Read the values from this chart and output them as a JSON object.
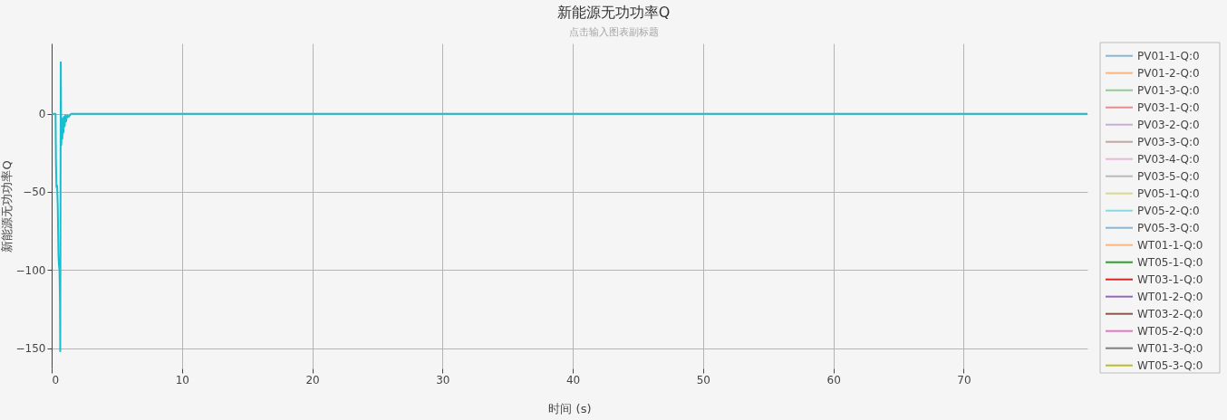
{
  "chart_data": {
    "type": "line",
    "title": "新能源无功功率Q",
    "subtitle": "点击输入图表副标题",
    "xlabel": "时间 (s)",
    "ylabel": "新能源无功功率Q",
    "x": [
      0,
      0.3,
      0.33,
      0.37,
      0.42,
      0.47,
      0.52,
      0.56,
      0.6,
      0.64,
      0.66,
      0.68,
      0.7,
      0.72,
      0.74,
      0.78,
      0.82,
      0.86,
      0.9,
      0.95,
      1,
      1.05,
      1.1,
      1.2,
      1.3,
      1.5,
      2,
      4,
      7,
      10,
      13,
      16,
      19,
      22,
      25,
      28,
      31,
      34,
      37,
      40,
      43,
      46,
      49,
      52,
      55,
      58,
      61,
      64,
      67,
      70,
      73,
      76,
      79.5
    ],
    "xlim": [
      0,
      79.5
    ],
    "xticks": [
      0,
      10,
      20,
      30,
      40,
      50,
      60,
      70
    ],
    "ylim": [
      -163,
      45
    ],
    "yticks": [
      {
        "value": -150,
        "label": "−150"
      },
      {
        "value": -100,
        "label": "−100"
      },
      {
        "value": -50,
        "label": "−50"
      },
      0
    ],
    "grid": true,
    "legend": "right",
    "series": [
      {
        "name": "PV01-1-Q:0",
        "color": "#8ab6d4",
        "values": [
          null,
          null,
          null,
          null,
          null,
          null,
          null,
          null,
          null,
          null,
          null,
          null,
          null,
          null,
          null,
          null,
          null,
          null,
          null,
          null,
          null,
          null,
          null,
          null,
          null,
          null,
          null,
          null,
          null,
          null,
          null,
          null,
          null,
          null,
          null,
          null,
          null,
          null,
          null,
          null,
          null,
          null,
          null,
          null,
          null,
          null,
          null,
          null,
          null,
          null,
          null,
          null,
          null
        ]
      },
      {
        "name": "PV01-2-Q:0",
        "color": "#fab681",
        "values": [
          null,
          null,
          null,
          null,
          null,
          null,
          null,
          null,
          null,
          null,
          null,
          null,
          null,
          null,
          null,
          null,
          null,
          null,
          null,
          null,
          null,
          null,
          null,
          null,
          null,
          null,
          null,
          null,
          null,
          null,
          null,
          null,
          null,
          null,
          null,
          null,
          null,
          null,
          null,
          null,
          null,
          null,
          null,
          null,
          null,
          null,
          null,
          null,
          null,
          null,
          null,
          null,
          null
        ]
      },
      {
        "name": "PV01-3-Q:0",
        "color": "#91cb91",
        "values": [
          null,
          null,
          null,
          null,
          null,
          null,
          null,
          null,
          null,
          null,
          null,
          null,
          null,
          null,
          null,
          null,
          null,
          null,
          null,
          null,
          null,
          null,
          null,
          null,
          null,
          null,
          null,
          null,
          null,
          null,
          null,
          null,
          null,
          null,
          null,
          null,
          null,
          null,
          null,
          null,
          null,
          null,
          null,
          null,
          null,
          null,
          null,
          null,
          null,
          null,
          null,
          null,
          null
        ]
      },
      {
        "name": "PV03-1-Q:0",
        "color": "#e68e8e",
        "values": [
          null,
          null,
          null,
          null,
          null,
          null,
          null,
          null,
          null,
          null,
          null,
          null,
          null,
          null,
          null,
          null,
          null,
          null,
          null,
          null,
          null,
          null,
          null,
          null,
          null,
          null,
          null,
          null,
          null,
          null,
          null,
          null,
          null,
          null,
          null,
          null,
          null,
          null,
          null,
          null,
          null,
          null,
          null,
          null,
          null,
          null,
          null,
          null,
          null,
          null,
          null,
          null,
          null
        ]
      },
      {
        "name": "PV03-2-Q:0",
        "color": "#c5aed9",
        "values": [
          null,
          null,
          null,
          null,
          null,
          null,
          null,
          null,
          null,
          null,
          null,
          null,
          null,
          null,
          null,
          null,
          null,
          null,
          null,
          null,
          null,
          null,
          null,
          null,
          null,
          null,
          null,
          null,
          null,
          null,
          null,
          null,
          null,
          null,
          null,
          null,
          null,
          null,
          null,
          null,
          null,
          null,
          null,
          null,
          null,
          null,
          null,
          null,
          null,
          null,
          null,
          null,
          null
        ]
      },
      {
        "name": "PV03-3-Q:0",
        "color": "#c1a5a0",
        "values": [
          null,
          null,
          null,
          null,
          null,
          null,
          null,
          null,
          null,
          null,
          null,
          null,
          null,
          null,
          null,
          null,
          null,
          null,
          null,
          null,
          null,
          null,
          null,
          null,
          null,
          null,
          null,
          null,
          null,
          null,
          null,
          null,
          null,
          null,
          null,
          null,
          null,
          null,
          null,
          null,
          null,
          null,
          null,
          null,
          null,
          null,
          null,
          null,
          null,
          null,
          null,
          null,
          null
        ]
      },
      {
        "name": "PV03-4-Q:0",
        "color": "#ecb6dc",
        "values": [
          null,
          null,
          null,
          null,
          null,
          null,
          null,
          null,
          null,
          null,
          null,
          null,
          null,
          null,
          null,
          null,
          null,
          null,
          null,
          null,
          null,
          null,
          null,
          null,
          null,
          null,
          null,
          null,
          null,
          null,
          null,
          null,
          null,
          null,
          null,
          null,
          null,
          null,
          null,
          null,
          null,
          null,
          null,
          null,
          null,
          null,
          null,
          null,
          null,
          null,
          null,
          null,
          null
        ]
      },
      {
        "name": "PV03-5-Q:0",
        "color": "#bababa",
        "values": [
          null,
          null,
          null,
          null,
          null,
          null,
          null,
          null,
          null,
          null,
          null,
          null,
          null,
          null,
          null,
          null,
          null,
          null,
          null,
          null,
          null,
          null,
          null,
          null,
          null,
          null,
          null,
          null,
          null,
          null,
          null,
          null,
          null,
          null,
          null,
          null,
          null,
          null,
          null,
          null,
          null,
          null,
          null,
          null,
          null,
          null,
          null,
          null,
          null,
          null,
          null,
          null,
          null
        ]
      },
      {
        "name": "PV05-1-Q:0",
        "color": "#d9d98c",
        "values": [
          null,
          null,
          null,
          null,
          null,
          null,
          null,
          null,
          null,
          null,
          null,
          null,
          null,
          null,
          null,
          null,
          null,
          null,
          null,
          null,
          null,
          null,
          null,
          null,
          null,
          null,
          null,
          null,
          null,
          null,
          null,
          null,
          null,
          null,
          null,
          null,
          null,
          null,
          null,
          null,
          null,
          null,
          null,
          null,
          null,
          null,
          null,
          null,
          null,
          null,
          null,
          null,
          null
        ]
      },
      {
        "name": "PV05-2-Q:0",
        "color": "#86d9e2",
        "values": [
          null,
          null,
          null,
          null,
          null,
          null,
          null,
          null,
          null,
          null,
          null,
          null,
          null,
          null,
          null,
          null,
          null,
          null,
          null,
          null,
          null,
          null,
          null,
          null,
          null,
          null,
          null,
          null,
          null,
          null,
          null,
          null,
          null,
          null,
          null,
          null,
          null,
          null,
          null,
          null,
          null,
          null,
          null,
          null,
          null,
          null,
          null,
          null,
          null,
          null,
          null,
          null,
          null
        ]
      },
      {
        "name": "PV05-3-Q:0",
        "color": "#8ab6d4",
        "values": [
          null,
          null,
          null,
          null,
          null,
          null,
          null,
          null,
          null,
          null,
          null,
          null,
          null,
          null,
          null,
          null,
          null,
          null,
          null,
          null,
          null,
          null,
          null,
          null,
          null,
          null,
          null,
          null,
          null,
          null,
          null,
          null,
          null,
          null,
          null,
          null,
          null,
          null,
          null,
          null,
          null,
          null,
          null,
          null,
          null,
          null,
          null,
          null,
          null,
          null,
          null,
          null,
          null
        ]
      },
      {
        "name": "WT01-1-Q:0",
        "color": "#fab681",
        "values": [
          null,
          null,
          null,
          null,
          null,
          null,
          null,
          null,
          null,
          null,
          null,
          null,
          null,
          null,
          null,
          null,
          null,
          null,
          null,
          null,
          null,
          null,
          null,
          null,
          null,
          null,
          null,
          null,
          null,
          null,
          null,
          null,
          null,
          null,
          null,
          null,
          null,
          null,
          null,
          null,
          null,
          null,
          null,
          null,
          null,
          null,
          null,
          null,
          null,
          null,
          null,
          null,
          null
        ]
      },
      {
        "name": "WT05-1-Q:0",
        "color": "#2ca02c",
        "values": [
          null,
          null,
          null,
          null,
          null,
          null,
          null,
          null,
          null,
          null,
          null,
          null,
          null,
          null,
          null,
          null,
          null,
          null,
          null,
          null,
          null,
          null,
          null,
          null,
          null,
          null,
          null,
          null,
          null,
          null,
          null,
          null,
          null,
          null,
          null,
          null,
          null,
          null,
          null,
          null,
          null,
          null,
          null,
          null,
          null,
          null,
          null,
          null,
          null,
          null,
          null,
          null,
          null
        ]
      },
      {
        "name": "WT03-1-Q:0",
        "color": "#d62728",
        "values": [
          null,
          null,
          null,
          null,
          null,
          null,
          null,
          null,
          null,
          null,
          null,
          null,
          null,
          null,
          null,
          null,
          null,
          null,
          null,
          null,
          null,
          null,
          null,
          null,
          null,
          null,
          null,
          null,
          null,
          null,
          null,
          null,
          null,
          null,
          null,
          null,
          null,
          null,
          null,
          null,
          null,
          null,
          null,
          null,
          null,
          null,
          null,
          null,
          null,
          null,
          null,
          null,
          null
        ]
      },
      {
        "name": "WT01-2-Q:0",
        "color": "#9467bd",
        "values": [
          null,
          null,
          null,
          null,
          null,
          null,
          null,
          null,
          null,
          null,
          null,
          null,
          null,
          null,
          null,
          null,
          null,
          null,
          null,
          null,
          null,
          null,
          null,
          null,
          null,
          null,
          null,
          null,
          null,
          null,
          null,
          null,
          null,
          null,
          null,
          null,
          null,
          null,
          null,
          null,
          null,
          null,
          null,
          null,
          null,
          null,
          null,
          null,
          null,
          null,
          null,
          null,
          null
        ]
      },
      {
        "name": "WT03-2-Q:0",
        "color": "#8c564b",
        "values": [
          null,
          null,
          null,
          null,
          null,
          null,
          null,
          null,
          null,
          null,
          null,
          null,
          null,
          null,
          null,
          null,
          null,
          null,
          null,
          null,
          null,
          null,
          null,
          null,
          null,
          null,
          null,
          null,
          null,
          null,
          null,
          null,
          null,
          null,
          null,
          null,
          null,
          null,
          null,
          null,
          null,
          null,
          null,
          null,
          null,
          null,
          null,
          null,
          null,
          null,
          null,
          null,
          null
        ]
      },
      {
        "name": "WT05-2-Q:0",
        "color": "#e377c2",
        "values": [
          null,
          null,
          null,
          null,
          null,
          null,
          null,
          null,
          null,
          null,
          null,
          null,
          null,
          null,
          null,
          null,
          null,
          null,
          null,
          null,
          null,
          null,
          null,
          null,
          null,
          null,
          null,
          null,
          null,
          null,
          null,
          null,
          null,
          null,
          null,
          null,
          null,
          null,
          null,
          null,
          null,
          null,
          null,
          null,
          null,
          null,
          null,
          null,
          null,
          null,
          null,
          null,
          null
        ]
      },
      {
        "name": "WT01-3-Q:0",
        "color": "#7f7f7f",
        "values": [
          null,
          null,
          null,
          null,
          null,
          null,
          null,
          null,
          null,
          null,
          null,
          null,
          null,
          null,
          null,
          null,
          null,
          null,
          null,
          null,
          null,
          null,
          null,
          null,
          null,
          null,
          null,
          null,
          null,
          null,
          null,
          null,
          null,
          null,
          null,
          null,
          null,
          null,
          null,
          null,
          null,
          null,
          null,
          null,
          null,
          null,
          null,
          null,
          null,
          null,
          null,
          null,
          null
        ]
      },
      {
        "name": "WT05-3-Q:0",
        "color": "#bcbd22",
        "values": [
          null,
          null,
          null,
          null,
          null,
          null,
          null,
          null,
          null,
          null,
          null,
          null,
          null,
          null,
          null,
          null,
          null,
          null,
          null,
          null,
          null,
          null,
          null,
          null,
          null,
          null,
          null,
          null,
          null,
          null,
          null,
          null,
          null,
          null,
          null,
          null,
          null,
          null,
          null,
          null,
          null,
          null,
          null,
          null,
          null,
          null,
          null,
          null,
          null,
          null,
          null,
          null,
          null
        ]
      },
      {
        "color": "#17becf",
        "values": [
          0,
          0,
          -30,
          -47,
          -46,
          -60,
          -90,
          -97,
          -100,
          -120,
          -152,
          -60,
          33,
          5,
          -20,
          -5,
          -16,
          -3,
          -12,
          -2,
          -8,
          -1,
          -5,
          -1,
          -2,
          0,
          0,
          0,
          0,
          0,
          0,
          0,
          0,
          0,
          0,
          0,
          0,
          0,
          0,
          0,
          0,
          0,
          0,
          0,
          0,
          0,
          0,
          0,
          0,
          0,
          0,
          0,
          0
        ]
      }
    ]
  }
}
